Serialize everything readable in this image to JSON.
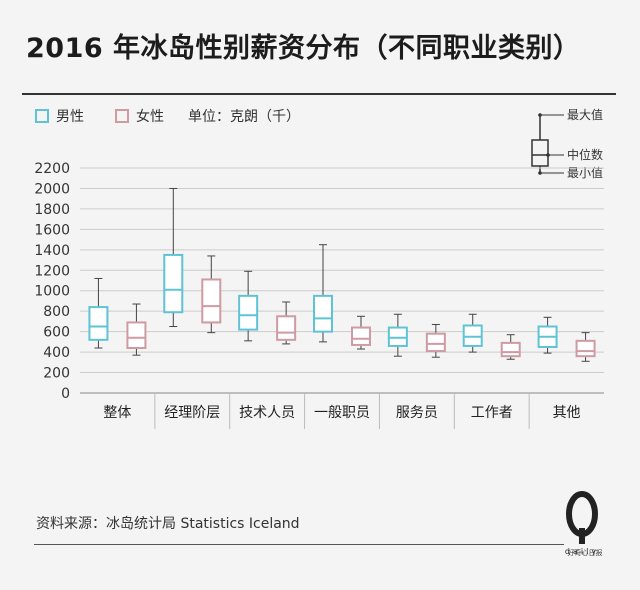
{
  "header": {
    "title": "2016 年冰岛性别薪资分布（不同职业类别）"
  },
  "legend": {
    "male": "男性",
    "female": "女性",
    "unit": "单位：克朗（千）"
  },
  "key": {
    "max": "最大值",
    "median": "中位数",
    "min": "最小值"
  },
  "footer": {
    "source": "资料来源：冰岛统计局 Statistics Iceland",
    "brand": "好奇心日报",
    "logo_text": "Q daily"
  },
  "colors": {
    "male": "#5fc3d6",
    "female": "#cf9aa2",
    "grid": "#cccccc",
    "axis": "#888888"
  },
  "chart_data": {
    "type": "box",
    "ylim": [
      0,
      2200
    ],
    "yticks": [
      0,
      200,
      400,
      600,
      800,
      1000,
      1200,
      1400,
      1600,
      1800,
      2000,
      2200
    ],
    "categories": [
      "整体",
      "经理阶层",
      "技术人员",
      "一般职员",
      "服务员",
      "工作者",
      "其他"
    ],
    "series": [
      {
        "name": "男性",
        "boxes": [
          {
            "min": 440,
            "q1": 520,
            "median": 650,
            "q3": 840,
            "max": 1120
          },
          {
            "min": 650,
            "q1": 790,
            "median": 1010,
            "q3": 1350,
            "max": 2000
          },
          {
            "min": 510,
            "q1": 620,
            "median": 760,
            "q3": 950,
            "max": 1190
          },
          {
            "min": 500,
            "q1": 600,
            "median": 730,
            "q3": 950,
            "max": 1450
          },
          {
            "min": 360,
            "q1": 460,
            "median": 540,
            "q3": 640,
            "max": 770
          },
          {
            "min": 400,
            "q1": 460,
            "median": 550,
            "q3": 660,
            "max": 770
          },
          {
            "min": 390,
            "q1": 450,
            "median": 550,
            "q3": 650,
            "max": 740
          }
        ]
      },
      {
        "name": "女性",
        "boxes": [
          {
            "min": 370,
            "q1": 440,
            "median": 540,
            "q3": 690,
            "max": 870
          },
          {
            "min": 590,
            "q1": 690,
            "median": 850,
            "q3": 1110,
            "max": 1340
          },
          {
            "min": 480,
            "q1": 520,
            "median": 590,
            "q3": 750,
            "max": 890
          },
          {
            "min": 430,
            "q1": 470,
            "median": 530,
            "q3": 640,
            "max": 750
          },
          {
            "min": 350,
            "q1": 410,
            "median": 480,
            "q3": 580,
            "max": 670
          },
          {
            "min": 330,
            "q1": 360,
            "median": 400,
            "q3": 490,
            "max": 570
          },
          {
            "min": 310,
            "q1": 360,
            "median": 410,
            "q3": 510,
            "max": 590
          }
        ]
      }
    ]
  }
}
